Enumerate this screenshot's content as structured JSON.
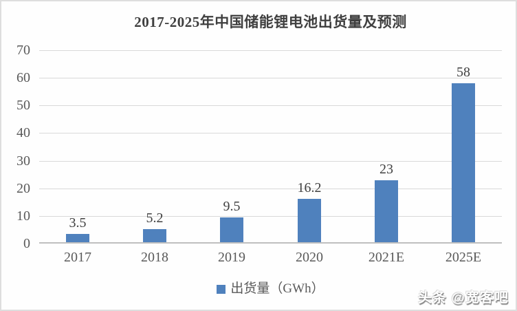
{
  "title": "2017-2025年中国储能锂电池出货量及预测",
  "legend": {
    "label": "出货量（GWh）"
  },
  "watermark": {
    "text": "头条 @宽客吧"
  },
  "colors": {
    "bar": "#4F81BD",
    "gridline": "#D9D9D9",
    "axis_line": "#BFBFBF",
    "title_text": "#3F3F3F",
    "axis_text": "#595959",
    "data_label_text": "#404040",
    "border": "#DEDEDE",
    "watermark_text": "#FFFFFF"
  },
  "chart_data": {
    "type": "bar",
    "title": "2017-2025年中国储能锂电池出货量及预测",
    "categories": [
      "2017",
      "2018",
      "2019",
      "2020",
      "2021E",
      "2025E"
    ],
    "series": [
      {
        "name": "出货量（GWh）",
        "values": [
          3.5,
          5.2,
          9.5,
          16.2,
          23,
          58
        ]
      }
    ],
    "data_labels": [
      "3.5",
      "5.2",
      "9.5",
      "16.2",
      "23",
      "58"
    ],
    "xlabel": "",
    "ylabel": "",
    "ylim": [
      0,
      70
    ],
    "yticks": [
      0,
      10,
      20,
      30,
      40,
      50,
      60,
      70
    ],
    "grid": true,
    "legend_position": "bottom",
    "legend_label": "出货量（GWh）"
  }
}
